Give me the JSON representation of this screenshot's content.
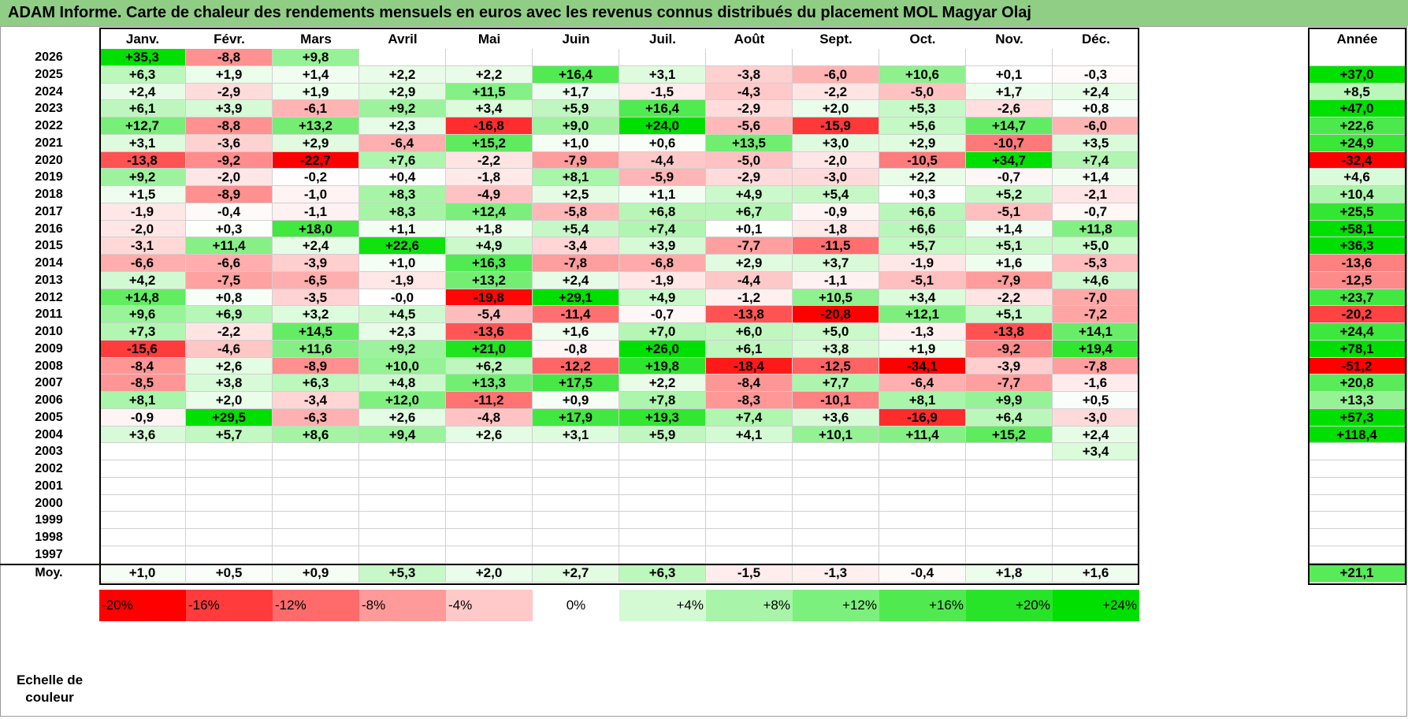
{
  "title": "ADAM Informe. Carte de chaleur des rendements mensuels en euros avec les revenus connus distribués du placement MOL Magyar Olaj",
  "chart_data": {
    "type": "heatmap",
    "title": "ADAM Informe. Carte de chaleur des rendements mensuels en euros avec les revenus connus distribués du placement MOL Magyar Olaj",
    "months": [
      "Janv.",
      "Févr.",
      "Mars",
      "Avril",
      "Mai",
      "Juin",
      "Juil.",
      "Août",
      "Sept.",
      "Oct.",
      "Nov.",
      "Déc."
    ],
    "year_header": "Année",
    "rows": [
      {
        "year": "2026",
        "values": [
          "+35,3",
          "-8,8",
          "+9,8",
          "",
          "",
          "",
          "",
          "",
          "",
          "",
          "",
          ""
        ],
        "annual": ""
      },
      {
        "year": "2025",
        "values": [
          "+6,3",
          "+1,9",
          "+1,4",
          "+2,2",
          "+2,2",
          "+16,4",
          "+3,1",
          "-3,8",
          "-6,0",
          "+10,6",
          "+0,1",
          "-0,3"
        ],
        "annual": "+37,0"
      },
      {
        "year": "2024",
        "values": [
          "+2,4",
          "-2,9",
          "+1,9",
          "+2,9",
          "+11,5",
          "+1,7",
          "-1,5",
          "-4,3",
          "-2,2",
          "-5,0",
          "+1,7",
          "+2,4"
        ],
        "annual": "+8,5"
      },
      {
        "year": "2023",
        "values": [
          "+6,1",
          "+3,9",
          "-6,1",
          "+9,2",
          "+3,4",
          "+5,9",
          "+16,4",
          "-2,9",
          "+2,0",
          "+5,3",
          "-2,6",
          "+0,8"
        ],
        "annual": "+47,0"
      },
      {
        "year": "2022",
        "values": [
          "+12,7",
          "-8,8",
          "+13,2",
          "+2,3",
          "-16,8",
          "+9,0",
          "+24,0",
          "-5,6",
          "-15,9",
          "+5,6",
          "+14,7",
          "-6,0"
        ],
        "annual": "+22,6"
      },
      {
        "year": "2021",
        "values": [
          "+3,1",
          "-3,6",
          "+2,9",
          "-6,4",
          "+15,2",
          "+1,0",
          "+0,6",
          "+13,5",
          "+3,0",
          "+2,9",
          "-10,7",
          "+3,5"
        ],
        "annual": "+24,9"
      },
      {
        "year": "2020",
        "values": [
          "-13,8",
          "-9,2",
          "-22,7",
          "+7,6",
          "-2,2",
          "-7,9",
          "-4,4",
          "-5,0",
          "-2,0",
          "-10,5",
          "+34,7",
          "+7,4"
        ],
        "annual": "-32,4"
      },
      {
        "year": "2019",
        "values": [
          "+9,2",
          "-2,0",
          "-0,2",
          "+0,4",
          "-1,8",
          "+8,1",
          "-5,9",
          "-2,9",
          "-3,0",
          "+2,2",
          "-0,7",
          "+1,4"
        ],
        "annual": "+4,6"
      },
      {
        "year": "2018",
        "values": [
          "+1,5",
          "-8,9",
          "-1,0",
          "+8,3",
          "-4,9",
          "+2,5",
          "+1,1",
          "+4,9",
          "+5,4",
          "+0,3",
          "+5,2",
          "-2,1"
        ],
        "annual": "+10,4"
      },
      {
        "year": "2017",
        "values": [
          "-1,9",
          "-0,4",
          "-1,1",
          "+8,3",
          "+12,4",
          "-5,8",
          "+6,8",
          "+6,7",
          "-0,9",
          "+6,6",
          "-5,1",
          "-0,7"
        ],
        "annual": "+25,5"
      },
      {
        "year": "2016",
        "values": [
          "-2,0",
          "+0,3",
          "+18,0",
          "+1,1",
          "+1,8",
          "+5,4",
          "+7,4",
          "+0,1",
          "-1,8",
          "+6,6",
          "+1,4",
          "+11,8"
        ],
        "annual": "+58,1"
      },
      {
        "year": "2015",
        "values": [
          "-3,1",
          "+11,4",
          "+2,4",
          "+22,6",
          "+4,9",
          "-3,4",
          "+3,9",
          "-7,7",
          "-11,5",
          "+5,7",
          "+5,1",
          "+5,0"
        ],
        "annual": "+36,3"
      },
      {
        "year": "2014",
        "values": [
          "-6,6",
          "-6,6",
          "-3,9",
          "+1,0",
          "+16,3",
          "-7,8",
          "-6,8",
          "+2,9",
          "+3,7",
          "-1,9",
          "+1,6",
          "-5,3"
        ],
        "annual": "-13,6"
      },
      {
        "year": "2013",
        "values": [
          "+4,2",
          "-7,5",
          "-6,5",
          "-1,9",
          "+13,2",
          "+2,4",
          "-1,9",
          "-4,4",
          "-1,1",
          "-5,1",
          "-7,9",
          "+4,6"
        ],
        "annual": "-12,5"
      },
      {
        "year": "2012",
        "values": [
          "+14,8",
          "+0,8",
          "-3,5",
          "-0,0",
          "-19,8",
          "+29,1",
          "+4,9",
          "-1,2",
          "+10,5",
          "+3,4",
          "-2,2",
          "-7,0"
        ],
        "annual": "+23,7"
      },
      {
        "year": "2011",
        "values": [
          "+9,6",
          "+6,9",
          "+3,2",
          "+4,5",
          "-5,4",
          "-11,4",
          "-0,7",
          "-13,8",
          "-20,8",
          "+12,1",
          "+5,1",
          "-7,2"
        ],
        "annual": "-20,2"
      },
      {
        "year": "2010",
        "values": [
          "+7,3",
          "-2,2",
          "+14,5",
          "+2,3",
          "-13,6",
          "+1,6",
          "+7,0",
          "+6,0",
          "+5,0",
          "-1,3",
          "-13,8",
          "+14,1"
        ],
        "annual": "+24,4"
      },
      {
        "year": "2009",
        "values": [
          "-15,6",
          "-4,6",
          "+11,6",
          "+9,2",
          "+21,0",
          "-0,8",
          "+26,0",
          "+6,1",
          "+3,8",
          "+1,9",
          "-9,2",
          "+19,4"
        ],
        "annual": "+78,1"
      },
      {
        "year": "2008",
        "values": [
          "-8,4",
          "+2,6",
          "-8,9",
          "+10,0",
          "+6,2",
          "-12,2",
          "+19,8",
          "-18,4",
          "-12,5",
          "-34,1",
          "-3,9",
          "-7,8"
        ],
        "annual": "-51,2"
      },
      {
        "year": "2007",
        "values": [
          "-8,5",
          "+3,8",
          "+6,3",
          "+4,8",
          "+13,3",
          "+17,5",
          "+2,2",
          "-8,4",
          "+7,7",
          "-6,4",
          "-7,7",
          "-1,6"
        ],
        "annual": "+20,8"
      },
      {
        "year": "2006",
        "values": [
          "+8,1",
          "+2,0",
          "-3,4",
          "+12,0",
          "-11,2",
          "+0,9",
          "+7,8",
          "-8,3",
          "-10,1",
          "+8,1",
          "+9,9",
          "+0,5"
        ],
        "annual": "+13,3"
      },
      {
        "year": "2005",
        "values": [
          "-0,9",
          "+29,5",
          "-6,3",
          "+2,6",
          "-4,8",
          "+17,9",
          "+19,3",
          "+7,4",
          "+3,6",
          "-16,9",
          "+6,4",
          "-3,0"
        ],
        "annual": "+57,3"
      },
      {
        "year": "2004",
        "values": [
          "+3,6",
          "+5,7",
          "+8,6",
          "+9,4",
          "+2,6",
          "+3,1",
          "+5,9",
          "+4,1",
          "+10,1",
          "+11,4",
          "+15,2",
          "+2,4"
        ],
        "annual": "+118,4"
      },
      {
        "year": "2003",
        "values": [
          "",
          "",
          "",
          "",
          "",
          "",
          "",
          "",
          "",
          "",
          "",
          "+3,4"
        ],
        "annual": ""
      },
      {
        "year": "2002",
        "values": [
          "",
          "",
          "",
          "",
          "",
          "",
          "",
          "",
          "",
          "",
          "",
          ""
        ],
        "annual": ""
      },
      {
        "year": "2001",
        "values": [
          "",
          "",
          "",
          "",
          "",
          "",
          "",
          "",
          "",
          "",
          "",
          ""
        ],
        "annual": ""
      },
      {
        "year": "2000",
        "values": [
          "",
          "",
          "",
          "",
          "",
          "",
          "",
          "",
          "",
          "",
          "",
          ""
        ],
        "annual": ""
      },
      {
        "year": "1999",
        "values": [
          "",
          "",
          "",
          "",
          "",
          "",
          "",
          "",
          "",
          "",
          "",
          ""
        ],
        "annual": ""
      },
      {
        "year": "1998",
        "values": [
          "",
          "",
          "",
          "",
          "",
          "",
          "",
          "",
          "",
          "",
          "",
          ""
        ],
        "annual": ""
      },
      {
        "year": "1997",
        "values": [
          "",
          "",
          "",
          "",
          "",
          "",
          "",
          "",
          "",
          "",
          "",
          ""
        ],
        "annual": ""
      }
    ],
    "average": {
      "label": "Moy.",
      "values": [
        "+1,0",
        "+0,5",
        "+0,9",
        "+5,3",
        "+2,0",
        "+2,7",
        "+6,3",
        "-1,5",
        "-1,3",
        "-0,4",
        "+1,8",
        "+1,6"
      ],
      "annual": "+21,1"
    },
    "color_scale": {
      "label": "Echelle de couleur",
      "stops": [
        {
          "label": "-20%",
          "value": -20,
          "color": "#ff0000"
        },
        {
          "label": "-16%",
          "value": -16,
          "color": "#ff3b3b"
        },
        {
          "label": "-12%",
          "value": -12,
          "color": "#ff6b6b"
        },
        {
          "label": "-8%",
          "value": -8,
          "color": "#ff9a9a"
        },
        {
          "label": "-4%",
          "value": -4,
          "color": "#ffc9c9"
        },
        {
          "label": "0%",
          "value": 0,
          "color": "#ffffff"
        },
        {
          "label": "+4%",
          "value": 4,
          "color": "#d4fad4"
        },
        {
          "label": "+8%",
          "value": 8,
          "color": "#a8f4a8"
        },
        {
          "label": "+12%",
          "value": 12,
          "color": "#7cf07c"
        },
        {
          "label": "+16%",
          "value": 16,
          "color": "#50ea50"
        },
        {
          "label": "+20%",
          "value": 20,
          "color": "#28e428"
        },
        {
          "label": "+24%",
          "value": 24,
          "color": "#00e000"
        }
      ]
    }
  },
  "colors": {
    "title_bar": "#8fce84",
    "negative_max": "#ff0000",
    "positive_max": "#00e000",
    "neutral": "#ffffff"
  }
}
